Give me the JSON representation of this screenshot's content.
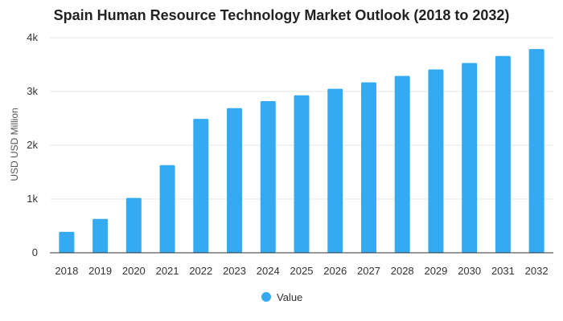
{
  "chart_data": {
    "type": "bar",
    "title": "Spain Human Resource Technology Market Outlook (2018 to 2032)",
    "xlabel": "",
    "ylabel": "USD USD Million",
    "categories": [
      "2018",
      "2019",
      "2020",
      "2021",
      "2022",
      "2023",
      "2024",
      "2025",
      "2026",
      "2027",
      "2028",
      "2029",
      "2030",
      "2031",
      "2032"
    ],
    "series": [
      {
        "name": "Value",
        "values": [
          390,
          630,
          1020,
          1630,
          2490,
          2690,
          2820,
          2930,
          3050,
          3170,
          3290,
          3410,
          3530,
          3660,
          3790
        ]
      }
    ],
    "ylim": [
      0,
      4000
    ],
    "yticks": [
      0,
      1000,
      2000,
      3000,
      4000
    ],
    "ytick_labels": [
      "0",
      "1k",
      "2k",
      "3k",
      "4k"
    ],
    "grid": true,
    "legend_position": "bottom-center",
    "colors": {
      "bar": "#33aaf2",
      "grid": "#e6e6e6",
      "axis": "#333333"
    }
  }
}
